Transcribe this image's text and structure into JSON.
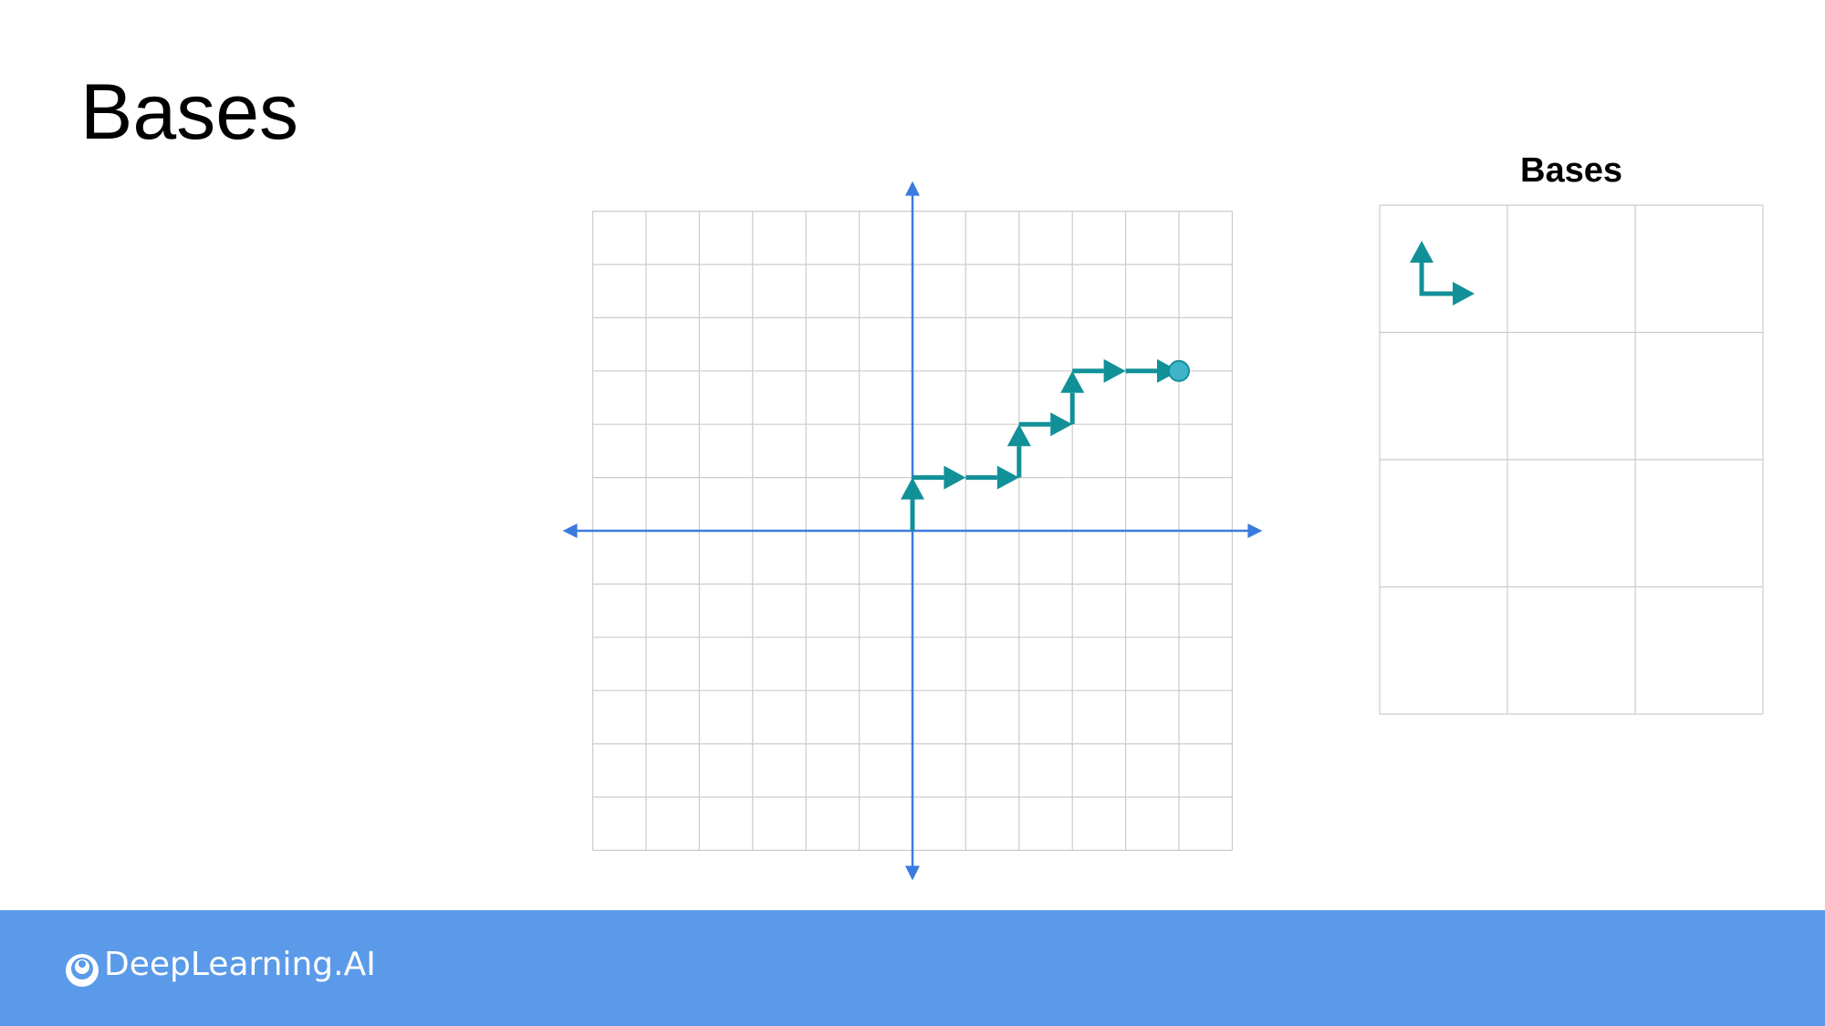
{
  "slide": {
    "title": "Bases"
  },
  "basis_panel": {
    "title": "Bases",
    "rows": 4,
    "cols": 3
  },
  "colors": {
    "grid": "#cccccc",
    "axis": "#3b7be0",
    "vector": "#119098",
    "endpoint": "#3fb4c9",
    "footer": "#5a9ae9",
    "logo": "#ffffff"
  },
  "plane": {
    "x_range": [
      -6,
      6
    ],
    "y_range": [
      -6,
      6
    ],
    "path_steps": [
      "up",
      "right",
      "right",
      "up",
      "right",
      "up",
      "right",
      "right"
    ],
    "start": [
      0,
      0
    ]
  },
  "basis_icons": [
    "up-arrow-icon",
    "right-arrow-icon"
  ],
  "footer": {
    "brand": "DeepLearning.AI",
    "logo_icon": "deeplearning-logo-icon"
  }
}
